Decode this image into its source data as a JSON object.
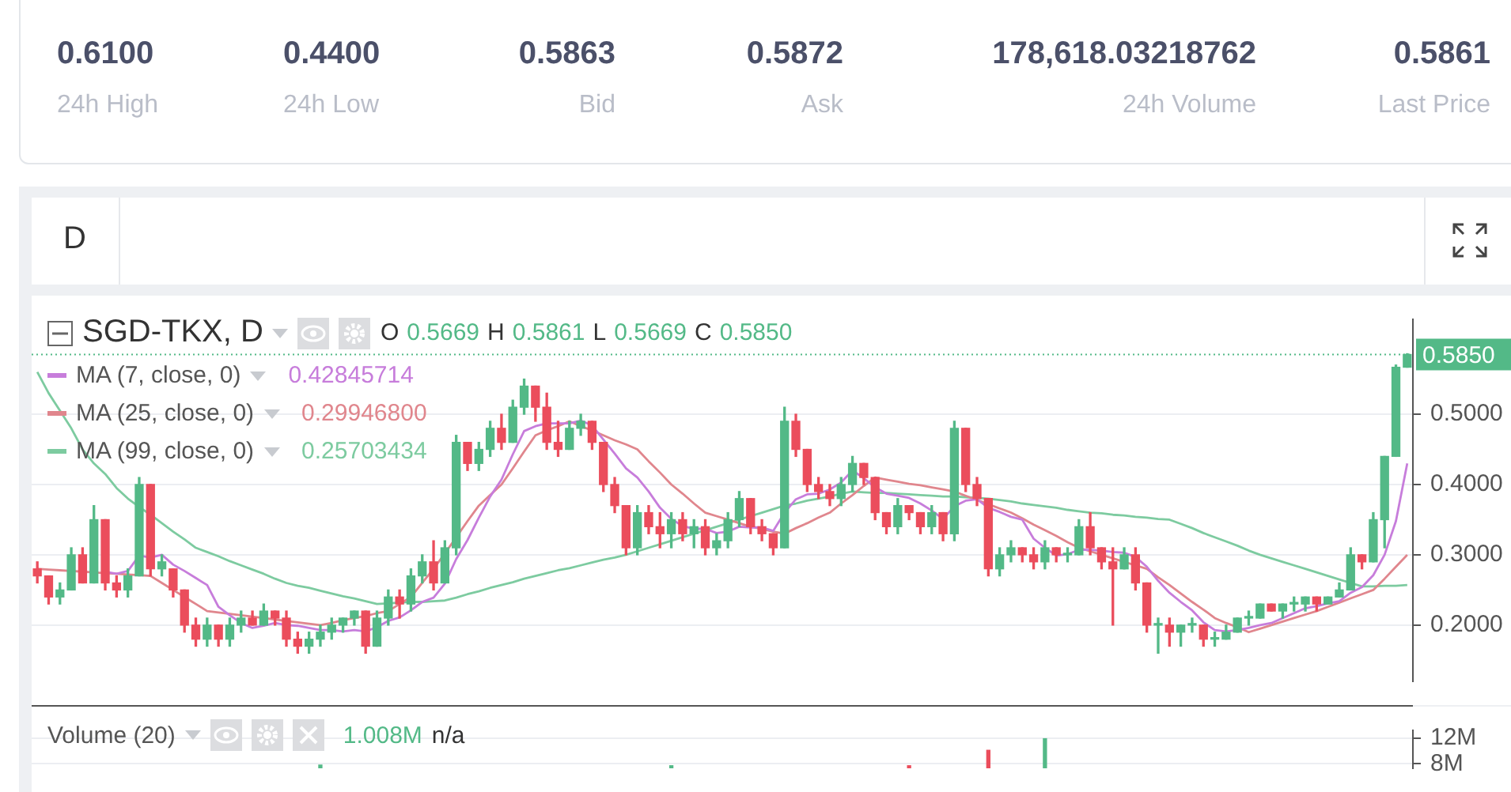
{
  "chart_data": [
    {
      "type": "other",
      "annotations": [
        "0.6100",
        "24h High",
        "0.4400",
        "24h Low",
        "0.5863",
        "Bid",
        "0.5872",
        "Ask",
        "178,618.03218762",
        "24h Volume",
        "0.5861",
        "Last Price"
      ]
    },
    {
      "type": "candlestick",
      "title": "SGD-TKX, D",
      "annotations": [
        "D",
        "O 0.5669 H 0.5861 L 0.5669 C 0.5850",
        "0.42845714",
        "0.29946800",
        "0.25703434"
      ],
      "categories": [
        null,
        null,
        null,
        null,
        null,
        null,
        null,
        null,
        null,
        null,
        null,
        null,
        null,
        null,
        null,
        null,
        null,
        null,
        null,
        null,
        null,
        null,
        null,
        null,
        null,
        null,
        null,
        null,
        null,
        null,
        null,
        null,
        null,
        null,
        null,
        null,
        null,
        null,
        null,
        null,
        null,
        null,
        null,
        null,
        null,
        null,
        null,
        null,
        null,
        null,
        null,
        null,
        null,
        null,
        null,
        null,
        null,
        null,
        null,
        null,
        null,
        null,
        null,
        null,
        null,
        null,
        null,
        null,
        null,
        null,
        null,
        null,
        null,
        null,
        null,
        null,
        null,
        null,
        null,
        null,
        null,
        null,
        null,
        null,
        null,
        null,
        null,
        null,
        null,
        null,
        null,
        null,
        null,
        null,
        null,
        null,
        null,
        null,
        null,
        null,
        null,
        null,
        null,
        null,
        null,
        null,
        null,
        null,
        null,
        null,
        null,
        null,
        null,
        null,
        null,
        null,
        null,
        null,
        null,
        null,
        null,
        null
      ],
      "ohlc": [
        [
          0.28,
          0.29,
          0.26,
          0.27
        ],
        [
          0.27,
          0.27,
          0.23,
          0.24
        ],
        [
          0.24,
          0.26,
          0.23,
          0.25
        ],
        [
          0.25,
          0.31,
          0.25,
          0.3
        ],
        [
          0.3,
          0.31,
          0.26,
          0.26
        ],
        [
          0.26,
          0.37,
          0.26,
          0.35
        ],
        [
          0.35,
          0.35,
          0.25,
          0.26
        ],
        [
          0.26,
          0.27,
          0.24,
          0.25
        ],
        [
          0.25,
          0.28,
          0.24,
          0.27
        ],
        [
          0.27,
          0.41,
          0.27,
          0.4
        ],
        [
          0.4,
          0.4,
          0.27,
          0.28
        ],
        [
          0.28,
          0.3,
          0.27,
          0.29
        ],
        [
          0.28,
          0.28,
          0.24,
          0.25
        ],
        [
          0.25,
          0.25,
          0.19,
          0.2
        ],
        [
          0.2,
          0.21,
          0.17,
          0.18
        ],
        [
          0.18,
          0.21,
          0.17,
          0.2
        ],
        [
          0.2,
          0.2,
          0.17,
          0.18
        ],
        [
          0.18,
          0.21,
          0.17,
          0.2
        ],
        [
          0.2,
          0.22,
          0.19,
          0.21
        ],
        [
          0.21,
          0.22,
          0.2,
          0.2
        ],
        [
          0.2,
          0.23,
          0.2,
          0.22
        ],
        [
          0.22,
          0.22,
          0.2,
          0.21
        ],
        [
          0.21,
          0.22,
          0.17,
          0.18
        ],
        [
          0.18,
          0.19,
          0.16,
          0.17
        ],
        [
          0.17,
          0.19,
          0.16,
          0.18
        ],
        [
          0.18,
          0.2,
          0.17,
          0.19
        ],
        [
          0.19,
          0.21,
          0.18,
          0.2
        ],
        [
          0.2,
          0.21,
          0.19,
          0.21
        ],
        [
          0.21,
          0.22,
          0.2,
          0.22
        ],
        [
          0.22,
          0.22,
          0.16,
          0.17
        ],
        [
          0.17,
          0.22,
          0.17,
          0.21
        ],
        [
          0.21,
          0.25,
          0.2,
          0.24
        ],
        [
          0.24,
          0.25,
          0.21,
          0.23
        ],
        [
          0.23,
          0.28,
          0.22,
          0.27
        ],
        [
          0.27,
          0.3,
          0.26,
          0.29
        ],
        [
          0.29,
          0.32,
          0.25,
          0.26
        ],
        [
          0.26,
          0.32,
          0.26,
          0.31
        ],
        [
          0.31,
          0.47,
          0.3,
          0.46
        ],
        [
          0.46,
          0.46,
          0.42,
          0.43
        ],
        [
          0.43,
          0.46,
          0.42,
          0.45
        ],
        [
          0.45,
          0.49,
          0.44,
          0.48
        ],
        [
          0.48,
          0.5,
          0.45,
          0.46
        ],
        [
          0.46,
          0.52,
          0.46,
          0.51
        ],
        [
          0.51,
          0.55,
          0.5,
          0.54
        ],
        [
          0.54,
          0.54,
          0.49,
          0.51
        ],
        [
          0.51,
          0.53,
          0.45,
          0.46
        ],
        [
          0.46,
          0.49,
          0.44,
          0.45
        ],
        [
          0.45,
          0.49,
          0.45,
          0.48
        ],
        [
          0.48,
          0.5,
          0.47,
          0.49
        ],
        [
          0.49,
          0.49,
          0.45,
          0.46
        ],
        [
          0.46,
          0.46,
          0.39,
          0.4
        ],
        [
          0.4,
          0.41,
          0.36,
          0.37
        ],
        [
          0.37,
          0.37,
          0.3,
          0.31
        ],
        [
          0.31,
          0.37,
          0.3,
          0.36
        ],
        [
          0.36,
          0.37,
          0.33,
          0.34
        ],
        [
          0.34,
          0.36,
          0.31,
          0.33
        ],
        [
          0.33,
          0.36,
          0.31,
          0.35
        ],
        [
          0.35,
          0.36,
          0.32,
          0.33
        ],
        [
          0.33,
          0.35,
          0.31,
          0.34
        ],
        [
          0.34,
          0.35,
          0.3,
          0.31
        ],
        [
          0.31,
          0.33,
          0.3,
          0.32
        ],
        [
          0.32,
          0.36,
          0.31,
          0.35
        ],
        [
          0.35,
          0.39,
          0.34,
          0.38
        ],
        [
          0.38,
          0.38,
          0.33,
          0.34
        ],
        [
          0.34,
          0.35,
          0.32,
          0.33
        ],
        [
          0.33,
          0.33,
          0.3,
          0.31
        ],
        [
          0.31,
          0.51,
          0.31,
          0.49
        ],
        [
          0.49,
          0.5,
          0.44,
          0.45
        ],
        [
          0.45,
          0.45,
          0.39,
          0.4
        ],
        [
          0.4,
          0.41,
          0.38,
          0.39
        ],
        [
          0.39,
          0.4,
          0.37,
          0.38
        ],
        [
          0.38,
          0.41,
          0.37,
          0.4
        ],
        [
          0.4,
          0.44,
          0.39,
          0.43
        ],
        [
          0.43,
          0.43,
          0.4,
          0.41
        ],
        [
          0.41,
          0.41,
          0.35,
          0.36
        ],
        [
          0.36,
          0.36,
          0.33,
          0.34
        ],
        [
          0.34,
          0.38,
          0.33,
          0.37
        ],
        [
          0.37,
          0.37,
          0.35,
          0.36
        ],
        [
          0.36,
          0.36,
          0.33,
          0.34
        ],
        [
          0.34,
          0.37,
          0.33,
          0.36
        ],
        [
          0.36,
          0.36,
          0.32,
          0.33
        ],
        [
          0.33,
          0.49,
          0.32,
          0.48
        ],
        [
          0.48,
          0.48,
          0.39,
          0.4
        ],
        [
          0.4,
          0.41,
          0.37,
          0.38
        ],
        [
          0.38,
          0.38,
          0.27,
          0.28
        ],
        [
          0.28,
          0.31,
          0.27,
          0.3
        ],
        [
          0.3,
          0.32,
          0.29,
          0.31
        ],
        [
          0.31,
          0.31,
          0.29,
          0.3
        ],
        [
          0.3,
          0.31,
          0.28,
          0.29
        ],
        [
          0.29,
          0.32,
          0.28,
          0.31
        ],
        [
          0.31,
          0.31,
          0.29,
          0.3
        ],
        [
          0.3,
          0.31,
          0.29,
          0.3
        ],
        [
          0.3,
          0.35,
          0.3,
          0.34
        ],
        [
          0.34,
          0.36,
          0.3,
          0.31
        ],
        [
          0.31,
          0.31,
          0.28,
          0.29
        ],
        [
          0.29,
          0.31,
          0.2,
          0.28
        ],
        [
          0.28,
          0.31,
          0.28,
          0.3
        ],
        [
          0.3,
          0.31,
          0.25,
          0.26
        ],
        [
          0.26,
          0.26,
          0.19,
          0.2
        ],
        [
          0.2,
          0.21,
          0.16,
          0.2
        ],
        [
          0.2,
          0.21,
          0.17,
          0.19
        ],
        [
          0.19,
          0.2,
          0.17,
          0.2
        ],
        [
          0.2,
          0.21,
          0.19,
          0.2
        ],
        [
          0.2,
          0.2,
          0.17,
          0.18
        ],
        [
          0.18,
          0.19,
          0.17,
          0.18
        ],
        [
          0.18,
          0.2,
          0.18,
          0.19
        ],
        [
          0.19,
          0.21,
          0.19,
          0.21
        ],
        [
          0.21,
          0.22,
          0.2,
          0.21
        ],
        [
          0.21,
          0.23,
          0.21,
          0.23
        ],
        [
          0.23,
          0.23,
          0.22,
          0.22
        ],
        [
          0.22,
          0.23,
          0.21,
          0.23
        ],
        [
          0.23,
          0.24,
          0.22,
          0.23
        ],
        [
          0.23,
          0.24,
          0.22,
          0.24
        ],
        [
          0.24,
          0.24,
          0.22,
          0.23
        ],
        [
          0.23,
          0.24,
          0.23,
          0.24
        ],
        [
          0.24,
          0.26,
          0.24,
          0.25
        ],
        [
          0.25,
          0.31,
          0.25,
          0.3
        ],
        [
          0.3,
          0.3,
          0.28,
          0.29
        ],
        [
          0.29,
          0.36,
          0.29,
          0.35
        ],
        [
          0.35,
          0.44,
          0.31,
          0.44
        ],
        [
          0.44,
          0.57,
          0.44,
          0.5669
        ],
        [
          0.5669,
          0.5861,
          0.5669,
          0.585
        ]
      ],
      "series": [
        {
          "type": "line",
          "name": "MA (7, close, 0)",
          "color": "#c77ddb",
          "values": [
            null,
            null,
            null,
            null,
            null,
            null,
            0.276,
            0.273,
            0.277,
            0.299,
            0.296,
            0.3,
            0.286,
            0.277,
            0.267,
            0.257,
            0.226,
            0.214,
            0.203,
            0.196,
            0.199,
            0.203,
            0.2,
            0.199,
            0.196,
            0.193,
            0.193,
            0.191,
            0.193,
            0.191,
            0.197,
            0.206,
            0.211,
            0.221,
            0.233,
            0.239,
            0.259,
            0.294,
            0.321,
            0.353,
            0.383,
            0.407,
            0.443,
            0.476,
            0.483,
            0.487,
            0.487,
            0.487,
            0.491,
            0.484,
            0.464,
            0.444,
            0.423,
            0.41,
            0.39,
            0.367,
            0.351,
            0.341,
            0.337,
            0.337,
            0.331,
            0.333,
            0.34,
            0.339,
            0.339,
            0.334,
            0.36,
            0.379,
            0.386,
            0.387,
            0.393,
            0.403,
            0.42,
            0.409,
            0.396,
            0.387,
            0.384,
            0.381,
            0.373,
            0.363,
            0.351,
            0.369,
            0.377,
            0.379,
            0.367,
            0.361,
            0.354,
            0.35,
            0.323,
            0.31,
            0.299,
            0.301,
            0.307,
            0.307,
            0.306,
            0.304,
            0.303,
            0.297,
            0.283,
            0.263,
            0.246,
            0.233,
            0.221,
            0.204,
            0.193,
            0.191,
            0.193,
            0.196,
            0.2,
            0.203,
            0.21,
            0.217,
            0.224,
            0.227,
            0.231,
            0.234,
            0.246,
            0.254,
            0.271,
            0.3,
            0.348,
            0.43
          ]
        },
        {
          "type": "line",
          "name": "MA (25, close, 0)",
          "color": "#e0868d",
          "values": [
            0.28,
            0.279,
            0.278,
            0.277,
            0.276,
            0.275,
            0.274,
            0.273,
            0.272,
            0.271,
            0.27,
            0.26,
            0.25,
            0.24,
            0.23,
            0.22,
            0.218,
            0.216,
            0.214,
            0.212,
            0.21,
            0.208,
            0.206,
            0.204,
            0.202,
            0.2,
            0.203,
            0.207,
            0.21,
            0.213,
            0.217,
            0.22,
            0.23,
            0.24,
            0.26,
            0.28,
            0.302,
            0.325,
            0.348,
            0.37,
            0.385,
            0.4,
            0.423,
            0.447,
            0.47,
            0.477,
            0.483,
            0.49,
            0.483,
            0.477,
            0.47,
            0.463,
            0.457,
            0.45,
            0.433,
            0.417,
            0.4,
            0.387,
            0.373,
            0.36,
            0.355,
            0.35,
            0.345,
            0.34,
            0.337,
            0.333,
            0.33,
            0.338,
            0.345,
            0.353,
            0.36,
            0.373,
            0.385,
            0.398,
            0.41,
            0.407,
            0.404,
            0.401,
            0.399,
            0.396,
            0.393,
            0.39,
            0.384,
            0.378,
            0.372,
            0.366,
            0.36,
            0.352,
            0.343,
            0.335,
            0.327,
            0.318,
            0.31,
            0.305,
            0.3,
            0.295,
            0.29,
            0.285,
            0.28,
            0.268,
            0.257,
            0.245,
            0.233,
            0.222,
            0.21,
            0.203,
            0.197,
            0.19,
            0.195,
            0.2,
            0.205,
            0.21,
            0.215,
            0.22,
            0.226,
            0.232,
            0.238,
            0.244,
            0.25,
            0.266,
            0.283,
            0.3
          ]
        },
        {
          "type": "line",
          "name": "MA (99, close, 0)",
          "color": "#7dcba0",
          "values": [
            0.56,
            0.53,
            0.505,
            0.48,
            0.45,
            0.43,
            0.415,
            0.395,
            0.38,
            0.368,
            0.357,
            0.345,
            0.333,
            0.322,
            0.31,
            0.304,
            0.298,
            0.291,
            0.285,
            0.279,
            0.273,
            0.266,
            0.26,
            0.256,
            0.253,
            0.249,
            0.245,
            0.241,
            0.238,
            0.234,
            0.23,
            0.231,
            0.232,
            0.233,
            0.233,
            0.234,
            0.235,
            0.239,
            0.244,
            0.248,
            0.253,
            0.257,
            0.261,
            0.266,
            0.27,
            0.274,
            0.278,
            0.281,
            0.285,
            0.289,
            0.293,
            0.296,
            0.3,
            0.305,
            0.31,
            0.315,
            0.32,
            0.325,
            0.33,
            0.335,
            0.34,
            0.345,
            0.35,
            0.355,
            0.36,
            0.365,
            0.37,
            0.373,
            0.377,
            0.38,
            0.383,
            0.387,
            0.39,
            0.389,
            0.388,
            0.388,
            0.387,
            0.386,
            0.385,
            0.384,
            0.383,
            0.383,
            0.382,
            0.381,
            0.38,
            0.378,
            0.376,
            0.373,
            0.371,
            0.369,
            0.367,
            0.364,
            0.362,
            0.36,
            0.359,
            0.357,
            0.356,
            0.354,
            0.353,
            0.351,
            0.35,
            0.344,
            0.338,
            0.331,
            0.325,
            0.319,
            0.313,
            0.306,
            0.3,
            0.295,
            0.29,
            0.285,
            0.28,
            0.275,
            0.27,
            0.265,
            0.26,
            0.255,
            0.255,
            0.256,
            0.256,
            0.257
          ]
        }
      ],
      "ylim": [
        0.12,
        0.635
      ],
      "yticks": [
        {
          "value": 0.2,
          "label": "0.2000"
        },
        {
          "value": 0.3,
          "label": "0.3000"
        },
        {
          "value": 0.4,
          "label": "0.4000"
        },
        {
          "value": 0.5,
          "label": "0.5000"
        }
      ],
      "ref_lines": [
        {
          "axis": "y",
          "value": 0.585,
          "label": "0.5850",
          "color": "#53b987",
          "line_style": "dotted"
        }
      ],
      "grid": "y",
      "legend": "top left",
      "tick_labels": "y"
    },
    {
      "type": "bar",
      "annotations": [
        "1.008M",
        "n/a"
      ],
      "categories": [
        null,
        null,
        null,
        null,
        null,
        null,
        null,
        null,
        null,
        null,
        null,
        null,
        null,
        null,
        null,
        null,
        null,
        null,
        null,
        null,
        null,
        null,
        null,
        null,
        null,
        null,
        null,
        null,
        null,
        null,
        null,
        null,
        null,
        null,
        null,
        null,
        null,
        null,
        null,
        null,
        null,
        null,
        null,
        null,
        null,
        null,
        null,
        null,
        null,
        null,
        null,
        null,
        null,
        null,
        null,
        null,
        null,
        null,
        null,
        null,
        null,
        null,
        null,
        null,
        null,
        null,
        null,
        null,
        null,
        null,
        null,
        null,
        null,
        null,
        null,
        null,
        null,
        null,
        null,
        null,
        null,
        null,
        null,
        null,
        null,
        null,
        null,
        null,
        null,
        null,
        null,
        null,
        null,
        null,
        null,
        null,
        null,
        null,
        null,
        null,
        null,
        null,
        null,
        null,
        null,
        null,
        null,
        null,
        null,
        null,
        null,
        null,
        null,
        null,
        null,
        null,
        null,
        null,
        null,
        null,
        null,
        null
      ],
      "series": [
        {
          "name": "Volume (20)",
          "values": [
            null,
            null,
            null,
            null,
            null,
            null,
            null,
            null,
            null,
            null,
            null,
            null,
            null,
            null,
            null,
            null,
            null,
            null,
            null,
            null,
            null,
            null,
            null,
            null,
            null,
            7800000,
            null,
            null,
            null,
            null,
            null,
            null,
            null,
            null,
            null,
            null,
            null,
            null,
            null,
            null,
            null,
            null,
            null,
            null,
            null,
            null,
            null,
            null,
            null,
            null,
            null,
            null,
            null,
            null,
            null,
            null,
            7700000,
            null,
            null,
            null,
            null,
            null,
            null,
            null,
            null,
            null,
            null,
            null,
            null,
            null,
            null,
            null,
            null,
            null,
            null,
            null,
            null,
            7700000,
            null,
            null,
            null,
            null,
            null,
            null,
            10100000,
            null,
            null,
            null,
            null,
            11900000,
            null,
            null,
            null,
            null,
            null,
            null,
            null,
            null,
            null,
            null,
            null,
            null,
            null,
            null,
            null,
            null,
            null,
            null,
            null,
            null,
            null,
            null,
            null,
            null,
            null,
            null,
            null,
            null,
            null,
            null,
            null,
            null
          ],
          "colors": [
            null,
            null,
            null,
            null,
            null,
            null,
            null,
            null,
            null,
            null,
            null,
            null,
            null,
            null,
            null,
            null,
            null,
            null,
            null,
            null,
            null,
            null,
            null,
            null,
            null,
            "#53b987",
            null,
            null,
            null,
            null,
            null,
            null,
            null,
            null,
            null,
            null,
            null,
            null,
            null,
            null,
            null,
            null,
            null,
            null,
            null,
            null,
            null,
            null,
            null,
            null,
            null,
            null,
            null,
            null,
            null,
            null,
            "#53b987",
            null,
            null,
            null,
            null,
            null,
            null,
            null,
            null,
            null,
            null,
            null,
            null,
            null,
            null,
            null,
            null,
            null,
            null,
            null,
            null,
            "#eb4d5c",
            null,
            null,
            null,
            null,
            null,
            null,
            "#eb4d5c",
            null,
            null,
            null,
            null,
            "#53b987",
            null,
            null,
            null,
            null,
            null,
            null,
            null,
            null,
            null,
            null,
            null,
            null,
            null,
            null,
            null,
            null,
            null,
            null,
            null,
            null,
            null,
            null,
            null,
            null,
            null,
            null,
            null,
            null,
            null,
            null,
            null,
            null
          ]
        }
      ],
      "ylim": [
        7300000,
        13200000
      ],
      "yticks": [
        {
          "value": 12000000,
          "label": "12M"
        },
        {
          "value": 8000000,
          "label": "8M"
        }
      ],
      "grid": "y",
      "legend": "top left",
      "tick_labels": "y"
    }
  ]
}
